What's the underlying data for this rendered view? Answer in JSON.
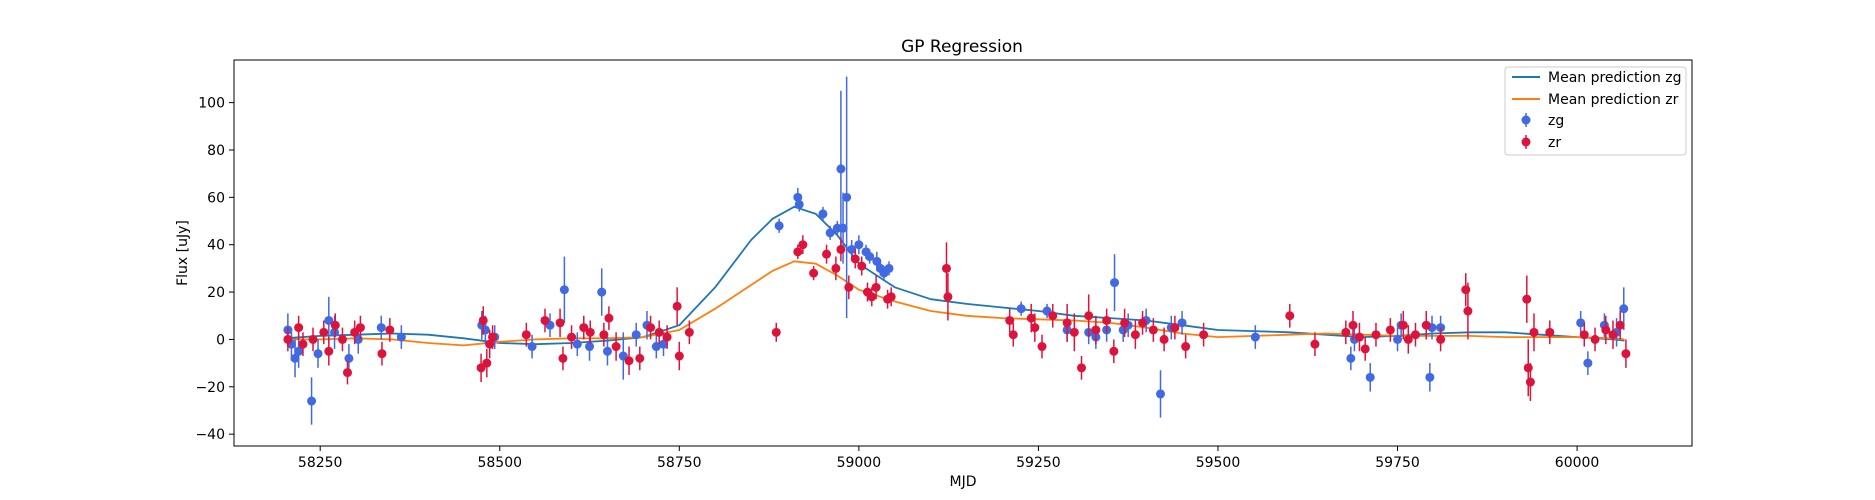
{
  "chart_data": {
    "type": "scatter",
    "title": "GP Regression",
    "xlabel": "MJD",
    "ylabel": "Flux [uJy]",
    "xlim": [
      58130,
      60160
    ],
    "ylim": [
      -45,
      118
    ],
    "xticks": [
      58250,
      58500,
      58750,
      59000,
      59250,
      59500,
      59750,
      60000
    ],
    "yticks": [
      -40,
      -20,
      0,
      20,
      40,
      60,
      80,
      100
    ],
    "legend_position": "top-right",
    "grid": false,
    "colors": {
      "mean_zg": "#1f77b4",
      "mean_zr": "#ff7f0e",
      "zg": "#4169e1",
      "zr": "#dc143c"
    },
    "series": [
      {
        "name": "Mean prediction zg",
        "kind": "line",
        "x": [
          58200,
          58250,
          58300,
          58350,
          58400,
          58450,
          58500,
          58550,
          58600,
          58650,
          58700,
          58750,
          58800,
          58850,
          58880,
          58910,
          58940,
          58970,
          59000,
          59050,
          59100,
          59150,
          59200,
          59250,
          59300,
          59350,
          59400,
          59450,
          59500,
          59550,
          59600,
          59650,
          59700,
          59750,
          59800,
          59850,
          59900,
          59950,
          60000,
          60050,
          60066
        ],
        "y": [
          0.5,
          1.5,
          2.0,
          2.5,
          2.0,
          0.5,
          -1.5,
          -2.0,
          -1.5,
          -0.5,
          1.0,
          6.0,
          22.0,
          42.0,
          51.0,
          56.0,
          53.0,
          44.0,
          32.0,
          22.0,
          17.0,
          15.0,
          13.5,
          12.0,
          10.0,
          9.0,
          8.0,
          6.0,
          4.0,
          3.5,
          3.0,
          2.0,
          1.0,
          1.5,
          2.5,
          3.0,
          3.0,
          2.0,
          1.0,
          0.0,
          -0.5
        ]
      },
      {
        "name": "Mean prediction zr",
        "kind": "line",
        "x": [
          58200,
          58250,
          58300,
          58350,
          58400,
          58450,
          58500,
          58550,
          58600,
          58650,
          58700,
          58750,
          58800,
          58850,
          58880,
          58910,
          58940,
          58970,
          59000,
          59050,
          59100,
          59150,
          59200,
          59250,
          59300,
          59350,
          59400,
          59450,
          59500,
          59550,
          59600,
          59650,
          59700,
          59750,
          59800,
          59850,
          59900,
          59950,
          60000,
          60050,
          60066
        ],
        "y": [
          0.0,
          0.0,
          0.5,
          0.0,
          -1.5,
          -2.5,
          -1.0,
          0.0,
          0.5,
          0.5,
          1.0,
          4.0,
          13.0,
          23.0,
          29.0,
          33.0,
          32.0,
          27.0,
          21.0,
          16.0,
          12.0,
          10.0,
          9.0,
          8.5,
          8.0,
          7.0,
          5.0,
          2.5,
          1.0,
          1.5,
          2.0,
          2.5,
          2.0,
          1.5,
          1.5,
          1.5,
          1.0,
          1.0,
          1.0,
          0.5,
          0.0
        ]
      },
      {
        "name": "zg",
        "kind": "errorbar",
        "x": [
          58205,
          58210,
          58215,
          58220,
          58238,
          58247,
          58262,
          58270,
          58290,
          58303,
          58335,
          58363,
          58475,
          58480,
          58493,
          58545,
          58570,
          58590,
          58608,
          58625,
          58642,
          58650,
          58672,
          58690,
          58705,
          58718,
          58728,
          58889,
          58915,
          58917,
          58950,
          58960,
          58970,
          58975,
          58978,
          58983,
          58990,
          59000,
          59010,
          59015,
          59025,
          59030,
          59035,
          59042,
          59226,
          59262,
          59290,
          59320,
          59330,
          59345,
          59356,
          59368,
          59375,
          59400,
          59420,
          59435,
          59450,
          59552,
          59685,
          59690,
          59712,
          59750,
          59755,
          59795,
          59798,
          59810,
          60005,
          60015,
          60038,
          60055,
          60065
        ],
        "y": [
          4,
          -2,
          -8,
          -5,
          -26,
          -6,
          8,
          3,
          -8,
          0,
          5,
          1,
          6,
          4,
          1,
          -3,
          6,
          21,
          -2,
          -3,
          20,
          -5,
          -7,
          2,
          6,
          -3,
          -2,
          48,
          60,
          57,
          53,
          45,
          47,
          72,
          47,
          60,
          38,
          40,
          37,
          35,
          33,
          30,
          28,
          30,
          13,
          12,
          4,
          3,
          1,
          4,
          24,
          4,
          6,
          8,
          -23,
          5,
          7,
          1,
          -8,
          0,
          -16,
          0,
          6,
          -16,
          5,
          5,
          7,
          -10,
          6,
          3,
          13
        ],
        "yerr": [
          7,
          7,
          8,
          7,
          10,
          6,
          10,
          7,
          6,
          6,
          5,
          5,
          6,
          6,
          5,
          5,
          5,
          14,
          5,
          6,
          10,
          6,
          10,
          5,
          6,
          5,
          5,
          3,
          4,
          3,
          3,
          3,
          3,
          33,
          15,
          51,
          4,
          4,
          3,
          3,
          4,
          3,
          3,
          3,
          3,
          3,
          5,
          5,
          5,
          5,
          12,
          5,
          5,
          5,
          10,
          5,
          5,
          5,
          5,
          5,
          6,
          5,
          5,
          6,
          5,
          5,
          5,
          5,
          5,
          6,
          9
        ]
      },
      {
        "name": "zr",
        "kind": "errorbar",
        "x": [
          58205,
          58220,
          58226,
          58240,
          58255,
          58262,
          58271,
          58281,
          58288,
          58298,
          58306,
          58336,
          58347,
          58474,
          58477,
          58482,
          58486,
          58490,
          58537,
          58563,
          58584,
          58588,
          58600,
          58617,
          58626,
          58645,
          58652,
          58662,
          58680,
          58695,
          58710,
          58722,
          58733,
          58747,
          58750,
          58764,
          58885,
          58915,
          58922,
          58937,
          58955,
          58968,
          58975,
          58986,
          58995,
          59004,
          59012,
          59018,
          59024,
          59040,
          59045,
          59122,
          59124,
          59210,
          59215,
          59240,
          59245,
          59255,
          59270,
          59290,
          59300,
          59310,
          59320,
          59330,
          59345,
          59355,
          59370,
          59385,
          59395,
          59410,
          59425,
          59440,
          59455,
          59480,
          59600,
          59635,
          59678,
          59688,
          59697,
          59705,
          59720,
          59740,
          59758,
          59765,
          59775,
          59790,
          59810,
          59845,
          59848,
          59930,
          59932,
          59935,
          59940,
          59962,
          60010,
          60025,
          60040,
          60050,
          60060,
          60068
        ],
        "y": [
          0,
          5,
          -2,
          0,
          3,
          -5,
          6,
          0,
          -14,
          3,
          5,
          -6,
          4,
          -12,
          8,
          -10,
          -2,
          1,
          2,
          8,
          7,
          -8,
          1,
          5,
          3,
          2,
          9,
          -3,
          -9,
          -8,
          5,
          3,
          1,
          14,
          -7,
          3,
          3,
          37,
          40,
          28,
          36,
          30,
          38,
          22,
          34,
          31,
          20,
          18,
          22,
          17,
          18,
          30,
          18,
          8,
          2,
          9,
          5,
          -3,
          10,
          7,
          3,
          -12,
          10,
          4,
          8,
          -5,
          7,
          2,
          7,
          4,
          0,
          5,
          -3,
          2,
          10,
          -2,
          3,
          6,
          1,
          -4,
          2,
          4,
          6,
          0,
          2,
          6,
          0,
          21,
          12,
          17,
          -12,
          -18,
          3,
          3,
          2,
          0,
          4,
          2,
          6,
          -6
        ],
        "yerr": [
          5,
          5,
          5,
          5,
          5,
          6,
          5,
          5,
          5,
          5,
          5,
          5,
          5,
          6,
          6,
          6,
          6,
          5,
          5,
          5,
          6,
          5,
          5,
          5,
          5,
          5,
          5,
          6,
          6,
          5,
          5,
          5,
          5,
          8,
          6,
          5,
          4,
          3,
          4,
          3,
          4,
          5,
          5,
          5,
          4,
          4,
          4,
          4,
          5,
          4,
          4,
          11,
          10,
          5,
          5,
          6,
          6,
          5,
          5,
          8,
          8,
          5,
          9,
          6,
          5,
          5,
          6,
          6,
          5,
          5,
          5,
          5,
          5,
          5,
          5,
          5,
          5,
          6,
          6,
          5,
          5,
          5,
          6,
          6,
          5,
          6,
          5,
          7,
          12,
          10,
          12,
          8,
          8,
          5,
          5,
          5,
          6,
          6,
          6,
          6
        ]
      }
    ]
  }
}
